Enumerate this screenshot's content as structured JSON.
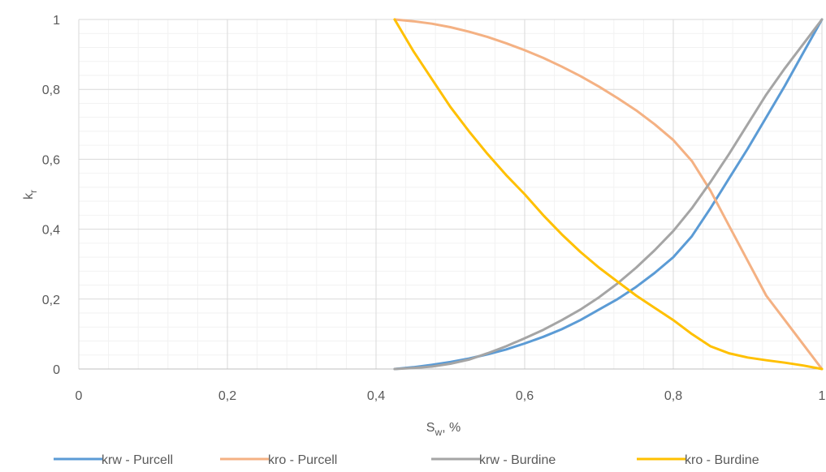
{
  "chart_data": {
    "type": "line",
    "title": "",
    "xlabel": {
      "main": "S",
      "sub": "w",
      "suffix": ", %"
    },
    "ylabel": {
      "main": "k",
      "sub": "r"
    },
    "xlim": [
      0,
      1
    ],
    "ylim": [
      0,
      1
    ],
    "x_ticks": [
      "0",
      "0,2",
      "0,4",
      "0,6",
      "0,8",
      "1"
    ],
    "y_ticks": [
      "0",
      "0,2",
      "0,4",
      "0,6",
      "0,8",
      "1"
    ],
    "grid": true,
    "legend_position": "bottom",
    "series": [
      {
        "name": "krw - Purcell",
        "color": "#5b9bd5",
        "points": [
          [
            0.425,
            0
          ],
          [
            0.45,
            0.005
          ],
          [
            0.475,
            0.012
          ],
          [
            0.5,
            0.02
          ],
          [
            0.525,
            0.03
          ],
          [
            0.55,
            0.042
          ],
          [
            0.575,
            0.056
          ],
          [
            0.6,
            0.073
          ],
          [
            0.625,
            0.092
          ],
          [
            0.65,
            0.114
          ],
          [
            0.675,
            0.14
          ],
          [
            0.7,
            0.17
          ],
          [
            0.725,
            0.2
          ],
          [
            0.75,
            0.235
          ],
          [
            0.775,
            0.275
          ],
          [
            0.8,
            0.32
          ],
          [
            0.825,
            0.38
          ],
          [
            0.85,
            0.46
          ],
          [
            0.875,
            0.545
          ],
          [
            0.9,
            0.63
          ],
          [
            0.925,
            0.72
          ],
          [
            0.95,
            0.81
          ],
          [
            0.975,
            0.905
          ],
          [
            1.0,
            1.0
          ]
        ]
      },
      {
        "name": "kro - Purcell",
        "color": "#f4b183",
        "points": [
          [
            0.425,
            1.0
          ],
          [
            0.45,
            0.995
          ],
          [
            0.475,
            0.988
          ],
          [
            0.5,
            0.978
          ],
          [
            0.525,
            0.965
          ],
          [
            0.55,
            0.95
          ],
          [
            0.575,
            0.932
          ],
          [
            0.6,
            0.912
          ],
          [
            0.625,
            0.89
          ],
          [
            0.65,
            0.865
          ],
          [
            0.675,
            0.838
          ],
          [
            0.7,
            0.808
          ],
          [
            0.725,
            0.775
          ],
          [
            0.75,
            0.74
          ],
          [
            0.775,
            0.7
          ],
          [
            0.8,
            0.655
          ],
          [
            0.825,
            0.595
          ],
          [
            0.85,
            0.51
          ],
          [
            0.875,
            0.41
          ],
          [
            0.9,
            0.31
          ],
          [
            0.925,
            0.21
          ],
          [
            0.95,
            0.14
          ],
          [
            0.975,
            0.07
          ],
          [
            1.0,
            0.0
          ]
        ]
      },
      {
        "name": "krw - Burdine",
        "color": "#a5a5a5",
        "points": [
          [
            0.425,
            0
          ],
          [
            0.45,
            0.003
          ],
          [
            0.475,
            0.007
          ],
          [
            0.5,
            0.015
          ],
          [
            0.525,
            0.027
          ],
          [
            0.55,
            0.045
          ],
          [
            0.575,
            0.065
          ],
          [
            0.6,
            0.088
          ],
          [
            0.625,
            0.112
          ],
          [
            0.65,
            0.14
          ],
          [
            0.675,
            0.17
          ],
          [
            0.7,
            0.205
          ],
          [
            0.725,
            0.245
          ],
          [
            0.75,
            0.29
          ],
          [
            0.775,
            0.34
          ],
          [
            0.8,
            0.395
          ],
          [
            0.825,
            0.46
          ],
          [
            0.85,
            0.535
          ],
          [
            0.875,
            0.615
          ],
          [
            0.9,
            0.7
          ],
          [
            0.925,
            0.785
          ],
          [
            0.95,
            0.86
          ],
          [
            0.975,
            0.93
          ],
          [
            1.0,
            1.0
          ]
        ]
      },
      {
        "name": "kro - Burdine",
        "color": "#ffc000",
        "points": [
          [
            0.425,
            1.0
          ],
          [
            0.45,
            0.91
          ],
          [
            0.475,
            0.83
          ],
          [
            0.5,
            0.75
          ],
          [
            0.525,
            0.68
          ],
          [
            0.55,
            0.615
          ],
          [
            0.575,
            0.555
          ],
          [
            0.6,
            0.5
          ],
          [
            0.625,
            0.44
          ],
          [
            0.65,
            0.385
          ],
          [
            0.675,
            0.335
          ],
          [
            0.7,
            0.29
          ],
          [
            0.725,
            0.25
          ],
          [
            0.75,
            0.21
          ],
          [
            0.775,
            0.175
          ],
          [
            0.8,
            0.14
          ],
          [
            0.825,
            0.1
          ],
          [
            0.85,
            0.065
          ],
          [
            0.875,
            0.045
          ],
          [
            0.9,
            0.033
          ],
          [
            0.925,
            0.025
          ],
          [
            0.95,
            0.018
          ],
          [
            0.975,
            0.01
          ],
          [
            1.0,
            0.0
          ]
        ]
      }
    ]
  }
}
